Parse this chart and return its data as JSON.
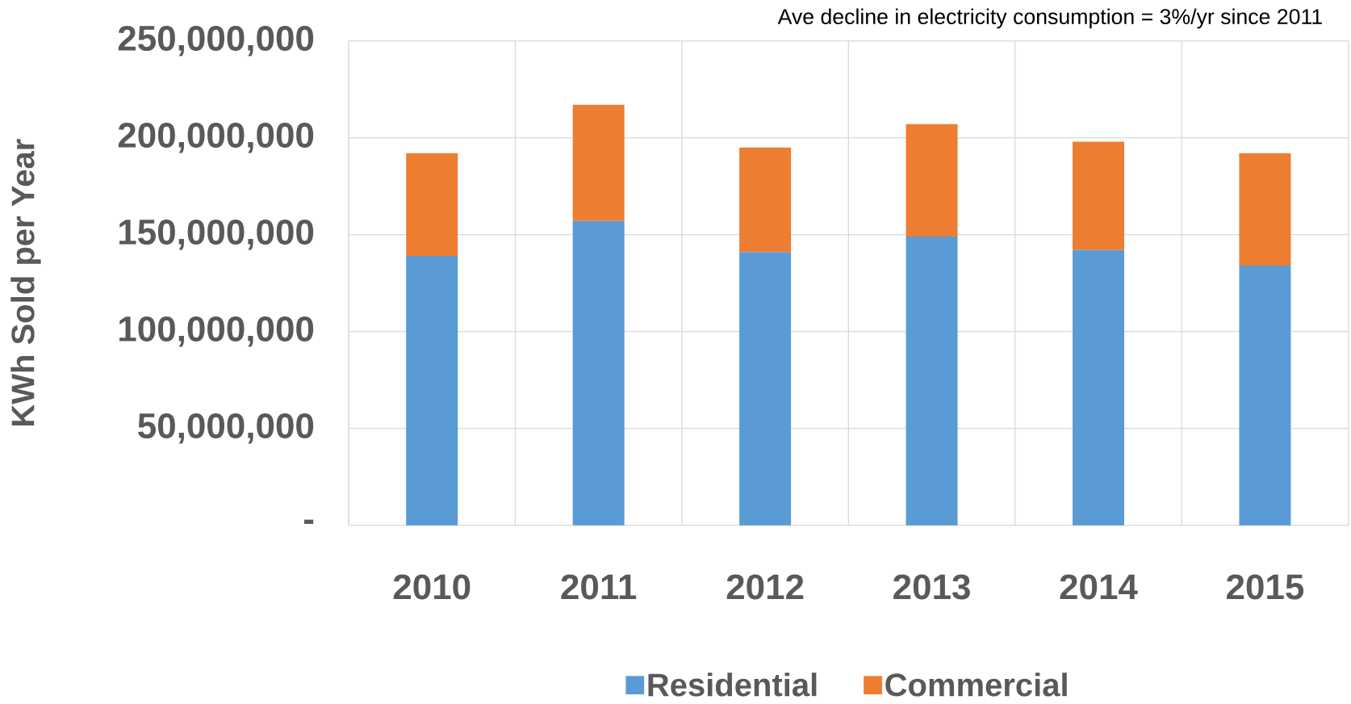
{
  "chart_data": {
    "type": "bar",
    "stacked": true,
    "categories": [
      "2010",
      "2011",
      "2012",
      "2013",
      "2014",
      "2015"
    ],
    "series": [
      {
        "name": "Residential",
        "color": "#5b9bd5",
        "values": [
          139000000,
          157000000,
          141000000,
          149000000,
          142000000,
          134000000
        ]
      },
      {
        "name": "Commercial",
        "color": "#ed7d31",
        "values": [
          53000000,
          60000000,
          54000000,
          58000000,
          56000000,
          58000000
        ]
      }
    ],
    "ylabel": "KWh Sold per Year",
    "ylim": [
      0,
      250000000
    ],
    "yticks": [
      {
        "value": 0,
        "label": "-"
      },
      {
        "value": 50000000,
        "label": "50,000,000"
      },
      {
        "value": 100000000,
        "label": "100,000,000"
      },
      {
        "value": 150000000,
        "label": "150,000,000"
      },
      {
        "value": 200000000,
        "label": "200,000,000"
      },
      {
        "value": 250000000,
        "label": "250,000,000"
      }
    ],
    "grid": true,
    "legend": "bottom",
    "annotations": [
      "Ave decline in electricity consumption = 3%/yr since 2011"
    ]
  }
}
